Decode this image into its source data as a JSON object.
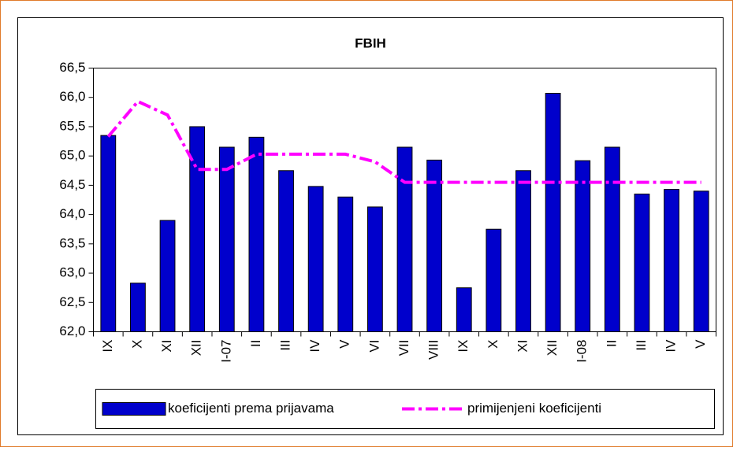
{
  "chart_data": {
    "type": "bar",
    "title": "FBIH",
    "categories": [
      "IX",
      "X",
      "XI",
      "XII",
      "I-07",
      "II",
      "III",
      "IV",
      "V",
      "VI",
      "VII",
      "VIII",
      "IX",
      "X",
      "XI",
      "XII",
      "I-08",
      "II",
      "III",
      "IV",
      "V"
    ],
    "series": [
      {
        "name": "koeficijenti prema prijavama",
        "color": "#0000cc",
        "type": "bar",
        "values": [
          65.35,
          62.83,
          63.9,
          65.5,
          65.15,
          65.32,
          64.75,
          64.48,
          64.3,
          64.13,
          65.15,
          64.93,
          62.75,
          63.75,
          64.75,
          66.07,
          64.92,
          65.15,
          64.35,
          64.43,
          64.4
        ]
      },
      {
        "name": "primijenjeni koeficijenti",
        "color": "#ff00ff",
        "type": "line",
        "values": [
          65.33,
          65.93,
          65.7,
          64.77,
          64.77,
          65.03,
          65.03,
          65.03,
          65.03,
          64.9,
          64.55,
          64.55,
          64.55,
          64.55,
          64.55,
          64.55,
          64.55,
          64.55,
          64.55,
          64.55,
          64.55
        ]
      }
    ],
    "ylim": [
      62,
      66.5
    ],
    "yticks": [
      {
        "value": 62,
        "label": "62,0"
      },
      {
        "value": 62.5,
        "label": "62,5"
      },
      {
        "value": 63,
        "label": "63,0"
      },
      {
        "value": 63.5,
        "label": "63,5"
      },
      {
        "value": 64,
        "label": "64,0"
      },
      {
        "value": 64.5,
        "label": "64,5"
      },
      {
        "value": 65,
        "label": "65,0"
      },
      {
        "value": 65.5,
        "label": "65,5"
      },
      {
        "value": 66,
        "label": "66,0"
      },
      {
        "value": 66.5,
        "label": "66,5"
      }
    ],
    "grid": false,
    "legend": "bottom"
  }
}
